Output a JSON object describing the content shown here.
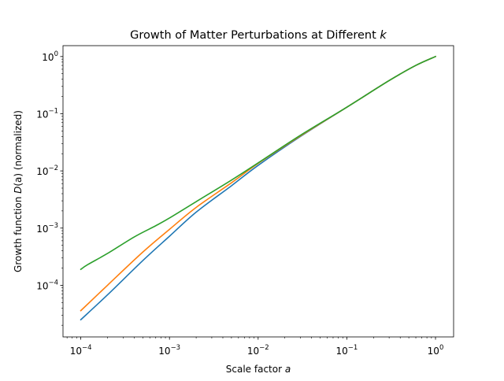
{
  "chart_data": {
    "type": "line",
    "title_main": "Growth of Matter Perturbations at Different ",
    "title_var": "k",
    "xlabel_main": "Scale factor ",
    "xlabel_var": "a",
    "ylabel_pre": "Growth function ",
    "ylabel_fn": "D",
    "ylabel_post": "(a) (normalized)",
    "xscale": "log",
    "yscale": "log",
    "xlim": [
      6.3e-05,
      1.6
    ],
    "ylim": [
      1.25e-05,
      1.55
    ],
    "x_ticks": [
      {
        "value": 0.0001,
        "mant": "10",
        "exp": "−4"
      },
      {
        "value": 0.001,
        "mant": "10",
        "exp": "−3"
      },
      {
        "value": 0.01,
        "mant": "10",
        "exp": "−2"
      },
      {
        "value": 0.1,
        "mant": "10",
        "exp": "−1"
      },
      {
        "value": 1,
        "mant": "10",
        "exp": "0"
      }
    ],
    "y_ticks": [
      {
        "value": 0.0001,
        "mant": "10",
        "exp": "−4"
      },
      {
        "value": 0.001,
        "mant": "10",
        "exp": "−3"
      },
      {
        "value": 0.01,
        "mant": "10",
        "exp": "−2"
      },
      {
        "value": 0.1,
        "mant": "10",
        "exp": "−1"
      },
      {
        "value": 1,
        "mant": "10",
        "exp": "0"
      }
    ],
    "grid": false,
    "series": [
      {
        "color": "#1f77b4",
        "x": [
          0.0001,
          0.0002,
          0.0005,
          0.001,
          0.002,
          0.005,
          0.01,
          0.03,
          0.1,
          0.3,
          0.6,
          1.0
        ],
        "y": [
          2.5e-05,
          6.8e-05,
          0.00027,
          0.00072,
          0.0019,
          0.0055,
          0.0125,
          0.04,
          0.13,
          0.38,
          0.7,
          1.0
        ]
      },
      {
        "color": "#ff7f0e",
        "x": [
          0.0001,
          0.0002,
          0.0005,
          0.001,
          0.002,
          0.005,
          0.01,
          0.03,
          0.1,
          0.3,
          0.6,
          1.0
        ],
        "y": [
          3.6e-05,
          0.0001,
          0.00038,
          0.00095,
          0.0023,
          0.0062,
          0.0135,
          0.041,
          0.13,
          0.38,
          0.7,
          1.0
        ]
      },
      {
        "color": "#2ca02c",
        "x": [
          0.0001,
          0.00012,
          0.0002,
          0.0004,
          0.0007,
          0.001,
          0.002,
          0.005,
          0.01,
          0.03,
          0.1,
          0.3,
          0.6,
          1.0
        ],
        "y": [
          0.00019,
          0.00023,
          0.00036,
          0.0007,
          0.0011,
          0.0015,
          0.0029,
          0.0069,
          0.0138,
          0.042,
          0.13,
          0.38,
          0.7,
          1.0
        ]
      }
    ]
  }
}
